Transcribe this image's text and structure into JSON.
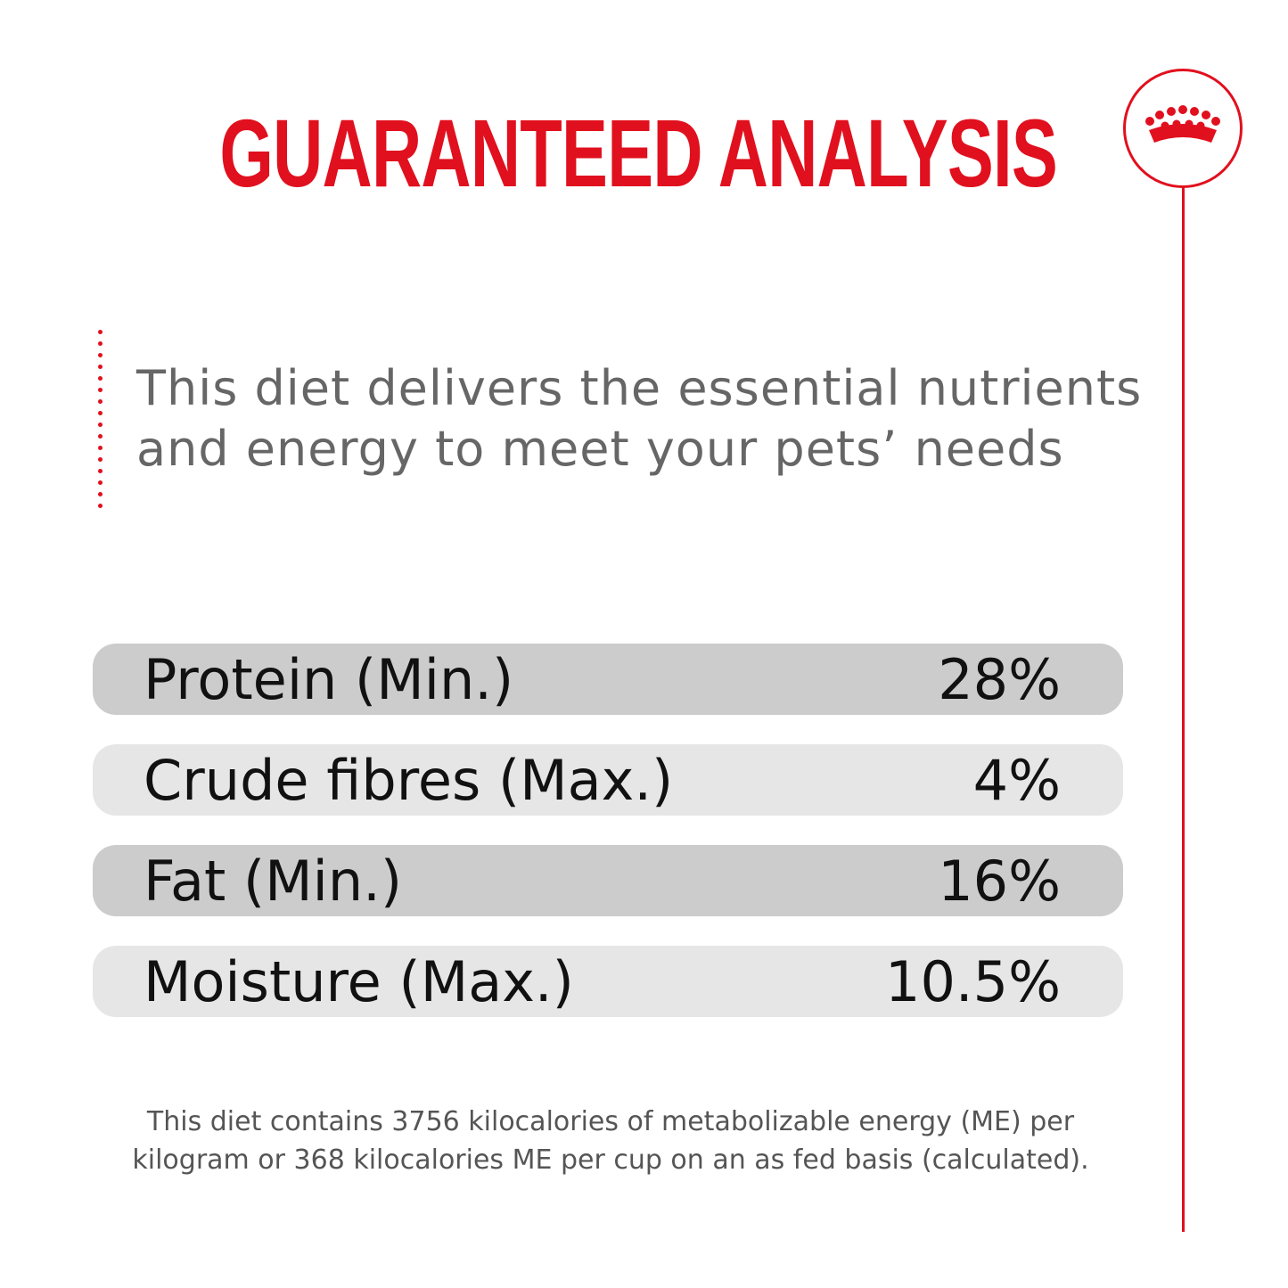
{
  "colors": {
    "accent": "#e1101e",
    "row_dark": "#cccccc",
    "row_light": "#e6e6e6",
    "intro_text": "#666666",
    "note_text": "#555555"
  },
  "title": "GUARANTEED ANALYSIS",
  "logo": {
    "icon": "crown-icon"
  },
  "intro": "This diet delivers the essential nutrients and energy to meet your pets’ needs",
  "analysis": [
    {
      "label": "Protein (Min.)",
      "value": "28%",
      "shade": "dark"
    },
    {
      "label": "Crude fibres (Max.)",
      "value": "4%",
      "shade": "light"
    },
    {
      "label": "Fat (Min.)",
      "value": "16%",
      "shade": "dark"
    },
    {
      "label": "Moisture (Max.)",
      "value": "10.5%",
      "shade": "light"
    }
  ],
  "note": "This diet contains 3756 kilocalories of metabolizable energy (ME) per kilogram or 368 kilocalories ME per cup on an as fed basis (calculated)."
}
